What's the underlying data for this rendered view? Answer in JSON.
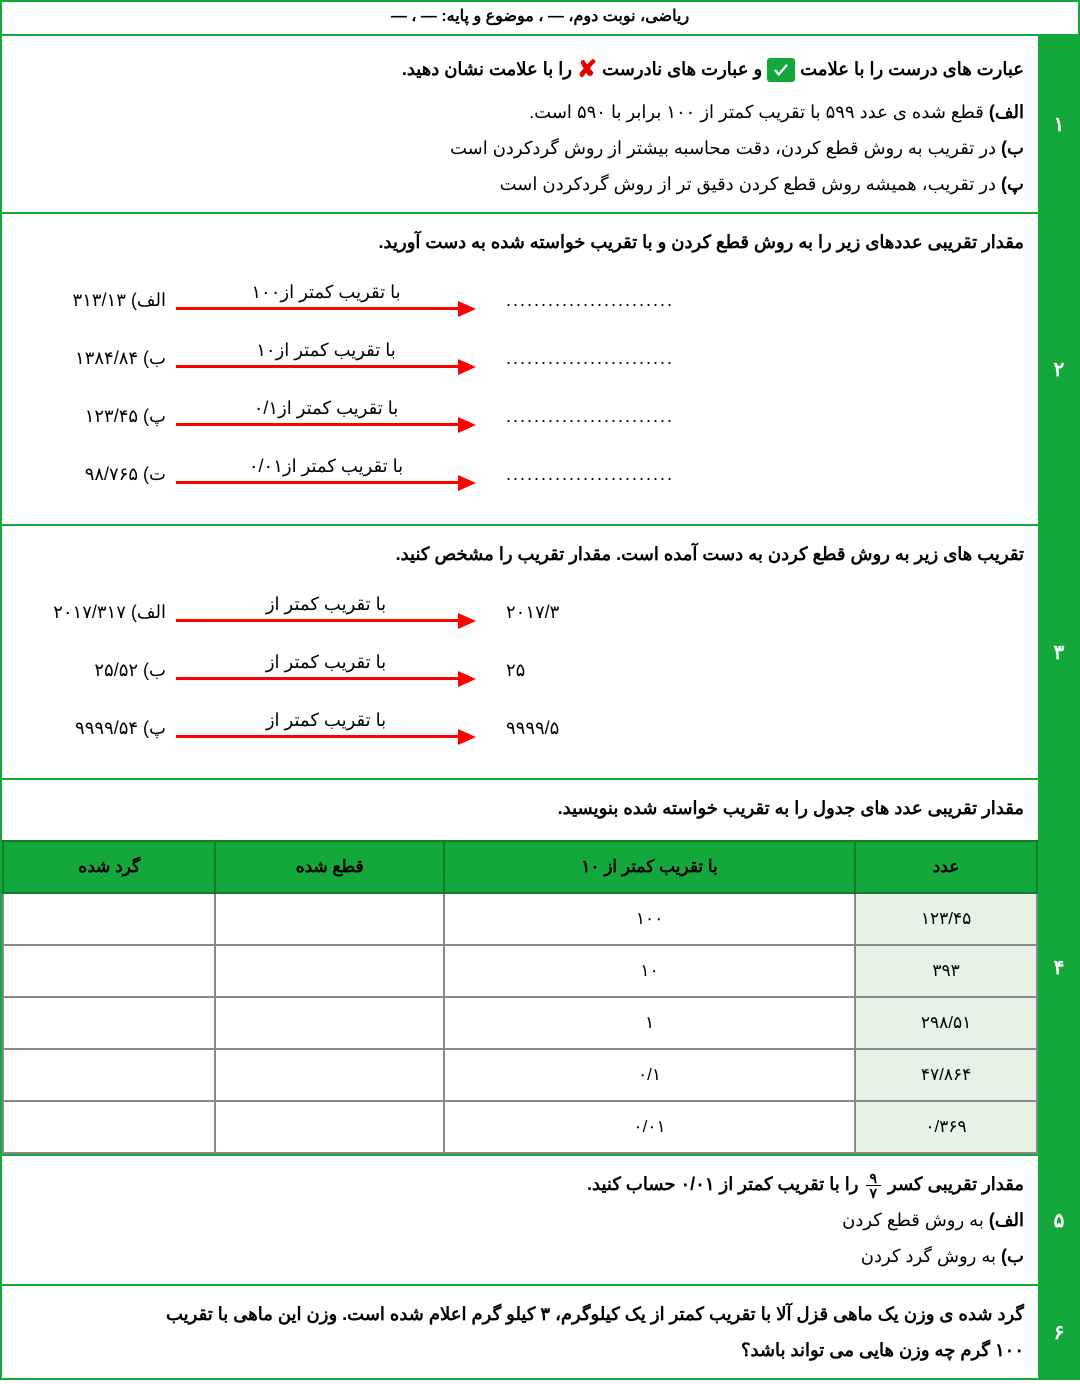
{
  "header": "ریاضی، نوبت دوم، — ، موضوع و پایه: — ، —",
  "q1": {
    "num": "۱",
    "prompt_a": "عبارت های درست را با علامت",
    "prompt_b": "و عبارت های نادرست",
    "prompt_c": "را با علامت  نشان دهید.",
    "a_label": "الف)",
    "a_text": "قطع شده ی عدد ۵۹۹ با تقریب کمتر از ۱۰۰ برابر با ۵۹۰ است.",
    "b_label": "ب)",
    "b_text": "در تقریب به روش قطع کردن، دقت محاسبه بیشتر از روش گردکردن است",
    "p_label": "پ)",
    "p_text": "در تقریب، همیشه روش قطع کردن دقیق تر از روش گردکردن است"
  },
  "q2": {
    "num": "۲",
    "prompt": "مقدار تقریبی عددهای زیر را به روش قطع کردن و با تقریب خواسته شده به دست آورید.",
    "rows": [
      {
        "tag": "الف)",
        "value": "۳۱۳/۱۳",
        "label": "با تقریب کمتر از۱۰۰",
        "dots": "........................"
      },
      {
        "tag": "ب)",
        "value": "۱۳۸۴/۸۴",
        "label": "با تقریب کمتر از۱۰",
        "dots": "........................"
      },
      {
        "tag": "پ)",
        "value": "۱۲۳/۴۵",
        "label": "با تقریب کمتر از۰/۱",
        "dots": "........................"
      },
      {
        "tag": "ت)",
        "value": "۹۸/۷۶۵",
        "label": "با تقریب کمتر از۰/۰۱",
        "dots": "........................"
      }
    ]
  },
  "q3": {
    "num": "۳",
    "prompt": "تقریب های زیر به روش قطع کردن به دست آمده است. مقدار تقریب را مشخص کنید.",
    "rows": [
      {
        "tag": "الف)",
        "value": "۲۰۱۷/۳۱۷",
        "label": "با تقریب کمتر از",
        "result": "۲۰۱۷/۳"
      },
      {
        "tag": "ب)",
        "value": "۲۵/۵۲",
        "label": "با تقریب کمتر از",
        "result": "۲۵"
      },
      {
        "tag": "پ)",
        "value": "۹۹۹۹/۵۴",
        "label": "با تقریب کمتر از",
        "result": "۹۹۹۹/۵"
      }
    ]
  },
  "q4": {
    "num": "۴",
    "prompt": "مقدار تقریبی عدد های جدول را به تقریب خواسته شده بنویسید.",
    "headers": [
      "عدد",
      "با تقریب کمتر از ۱۰",
      "قطع شده",
      "گرد شده"
    ],
    "rows": [
      [
        "۱۲۳/۴۵",
        "۱۰۰",
        "",
        ""
      ],
      [
        "۳۹۳",
        "۱۰",
        "",
        ""
      ],
      [
        "۲۹۸/۵۱",
        "۱",
        "",
        ""
      ],
      [
        "۴۷/۸۶۴",
        "۰/۱",
        "",
        ""
      ],
      [
        "۰/۳۶۹",
        "۰/۰۱",
        "",
        ""
      ]
    ]
  },
  "q5": {
    "num": "۵",
    "prompt_a": "مقدار تقریبی کسر",
    "frac_top": "۹",
    "frac_bot": "۷",
    "prompt_b": "را با تقریب  کمتر از ۰/۰۱ حساب کنید.",
    "a_label": "الف)",
    "a_text": "به روش قطع کردن",
    "b_label": "ب)",
    "b_text": "به روش گرد کردن"
  },
  "q6": {
    "num": "۶",
    "line1": "گرد شده ی وزن یک ماهی قزل آلا با تقریب کمتر از یک کیلوگرم، ۳ کیلو گرم اعلام شده است. وزن این ماهی با تقریب",
    "line2": "۱۰۰ گرم چه وزن هایی می تواند باشد؟"
  },
  "colors": {
    "green": "#14a73c",
    "red": "#ff0000",
    "xred": "#e60000",
    "shade": "#e6f2e6"
  }
}
